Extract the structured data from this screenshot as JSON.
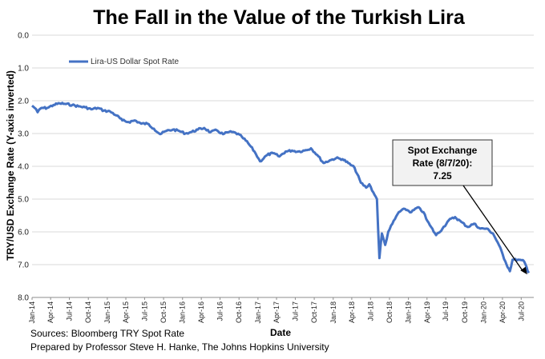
{
  "chart_data": {
    "type": "line",
    "title": "The Fall in the Value of the Turkish Lira",
    "xlabel": "Date",
    "ylabel": "TRY/USD Exchange Rate (Y-axis inverted)",
    "ylim": [
      0,
      8
    ],
    "y_inverted": true,
    "y_ticks": [
      "0.0",
      "1.0",
      "2.0",
      "3.0",
      "4.0",
      "5.0",
      "6.0",
      "7.0",
      "8.0"
    ],
    "x_ticks": [
      "Jan-14",
      "Apr-14",
      "Jul-14",
      "Oct-14",
      "Jan-15",
      "Apr-15",
      "Jul-15",
      "Oct-15",
      "Jan-16",
      "Apr-16",
      "Jul-16",
      "Oct-16",
      "Jan-17",
      "Apr-17",
      "Jul-17",
      "Oct-17",
      "Jan-18",
      "Apr-18",
      "Jul-18",
      "Oct-18",
      "Jan-19",
      "Apr-19",
      "Jul-19",
      "Oct-19",
      "Jan-20",
      "Apr-20",
      "Jul-20"
    ],
    "grid": true,
    "legend_position": "top-left",
    "series": [
      {
        "name": "Lira-US Dollar Spot Rate",
        "color": "#4472C4",
        "points": [
          [
            "2014-01-01",
            2.15
          ],
          [
            "2014-01-20",
            2.25
          ],
          [
            "2014-01-28",
            2.35
          ],
          [
            "2014-02-15",
            2.22
          ],
          [
            "2014-03-15",
            2.22
          ],
          [
            "2014-04-15",
            2.13
          ],
          [
            "2014-05-15",
            2.08
          ],
          [
            "2014-06-15",
            2.1
          ],
          [
            "2014-07-15",
            2.13
          ],
          [
            "2014-08-15",
            2.17
          ],
          [
            "2014-09-15",
            2.2
          ],
          [
            "2014-10-15",
            2.26
          ],
          [
            "2014-11-15",
            2.22
          ],
          [
            "2014-12-15",
            2.3
          ],
          [
            "2015-01-15",
            2.33
          ],
          [
            "2015-02-15",
            2.45
          ],
          [
            "2015-03-15",
            2.6
          ],
          [
            "2015-04-15",
            2.65
          ],
          [
            "2015-05-15",
            2.6
          ],
          [
            "2015-06-15",
            2.7
          ],
          [
            "2015-07-15",
            2.7
          ],
          [
            "2015-08-15",
            2.85
          ],
          [
            "2015-09-15",
            3.02
          ],
          [
            "2015-10-15",
            2.92
          ],
          [
            "2015-11-15",
            2.88
          ],
          [
            "2015-12-15",
            2.92
          ],
          [
            "2016-01-15",
            3.0
          ],
          [
            "2016-02-15",
            2.95
          ],
          [
            "2016-03-15",
            2.88
          ],
          [
            "2016-04-15",
            2.83
          ],
          [
            "2016-05-15",
            2.96
          ],
          [
            "2016-06-15",
            2.9
          ],
          [
            "2016-07-15",
            3.02
          ],
          [
            "2016-08-15",
            2.95
          ],
          [
            "2016-09-15",
            2.98
          ],
          [
            "2016-10-15",
            3.1
          ],
          [
            "2016-11-15",
            3.3
          ],
          [
            "2016-12-15",
            3.55
          ],
          [
            "2017-01-11",
            3.85
          ],
          [
            "2017-02-15",
            3.65
          ],
          [
            "2017-03-15",
            3.6
          ],
          [
            "2017-04-15",
            3.7
          ],
          [
            "2017-05-15",
            3.55
          ],
          [
            "2017-06-15",
            3.52
          ],
          [
            "2017-07-15",
            3.55
          ],
          [
            "2017-08-15",
            3.52
          ],
          [
            "2017-09-15",
            3.45
          ],
          [
            "2017-10-15",
            3.65
          ],
          [
            "2017-11-15",
            3.9
          ],
          [
            "2017-12-15",
            3.82
          ],
          [
            "2018-01-15",
            3.75
          ],
          [
            "2018-02-15",
            3.78
          ],
          [
            "2018-03-15",
            3.9
          ],
          [
            "2018-04-15",
            4.05
          ],
          [
            "2018-05-15",
            4.5
          ],
          [
            "2018-06-10",
            4.65
          ],
          [
            "2018-06-25",
            4.55
          ],
          [
            "2018-07-15",
            4.8
          ],
          [
            "2018-08-01",
            5.0
          ],
          [
            "2018-08-13",
            6.8
          ],
          [
            "2018-08-25",
            6.05
          ],
          [
            "2018-09-10",
            6.4
          ],
          [
            "2018-09-25",
            6.0
          ],
          [
            "2018-10-15",
            5.75
          ],
          [
            "2018-11-15",
            5.4
          ],
          [
            "2018-12-15",
            5.3
          ],
          [
            "2019-01-15",
            5.4
          ],
          [
            "2019-02-15",
            5.25
          ],
          [
            "2019-03-15",
            5.4
          ],
          [
            "2019-03-28",
            5.6
          ],
          [
            "2019-04-15",
            5.8
          ],
          [
            "2019-05-15",
            6.1
          ],
          [
            "2019-06-15",
            5.9
          ],
          [
            "2019-07-15",
            5.65
          ],
          [
            "2019-08-15",
            5.55
          ],
          [
            "2019-09-15",
            5.7
          ],
          [
            "2019-10-15",
            5.85
          ],
          [
            "2019-11-15",
            5.75
          ],
          [
            "2019-12-15",
            5.9
          ],
          [
            "2020-01-15",
            5.9
          ],
          [
            "2020-02-15",
            6.05
          ],
          [
            "2020-03-15",
            6.4
          ],
          [
            "2020-04-15",
            6.9
          ],
          [
            "2020-05-07",
            7.2
          ],
          [
            "2020-05-20",
            6.85
          ],
          [
            "2020-06-15",
            6.85
          ],
          [
            "2020-07-15",
            6.9
          ],
          [
            "2020-08-07",
            7.25
          ]
        ]
      }
    ],
    "annotation": {
      "lines": [
        "Spot Exchange",
        "Rate (8/7/20):",
        "7.25"
      ],
      "target_date": "2020-08-07",
      "target_value": 7.25
    }
  },
  "footer": {
    "source": "Sources: Bloomberg TRY Spot Rate",
    "prepared_by": "Prepared by Professor Steve H. Hanke, The Johns Hopkins University"
  }
}
